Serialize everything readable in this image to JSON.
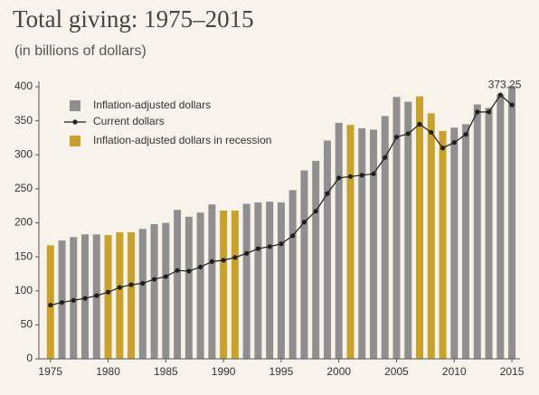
{
  "chart_data": {
    "type": "bar",
    "title": "Total giving: 1975–2015",
    "subtitle": "(in billions of dollars)",
    "x": [
      1975,
      1976,
      1977,
      1978,
      1979,
      1980,
      1981,
      1982,
      1983,
      1984,
      1985,
      1986,
      1987,
      1988,
      1989,
      1990,
      1991,
      1992,
      1993,
      1994,
      1995,
      1996,
      1997,
      1998,
      1999,
      2000,
      2001,
      2002,
      2003,
      2004,
      2005,
      2006,
      2007,
      2008,
      2009,
      2010,
      2011,
      2012,
      2013,
      2014,
      2015
    ],
    "series": [
      {
        "name": "Inflation-adjusted dollars",
        "type": "bar",
        "color": "#8f8f8f",
        "values": [
          null,
          174,
          179,
          183,
          183,
          null,
          null,
          null,
          191,
          198,
          200,
          219,
          209,
          215,
          227,
          null,
          null,
          228,
          230,
          231,
          230,
          248,
          277,
          291,
          321,
          347,
          null,
          339,
          337,
          357,
          385,
          378,
          null,
          null,
          null,
          340,
          345,
          374,
          369,
          389,
          401
        ]
      },
      {
        "name": "Current dollars",
        "type": "line",
        "color": "#1e1e1e",
        "values": [
          79,
          83,
          86,
          89,
          93,
          98,
          105,
          109,
          111,
          117,
          121,
          130,
          129,
          135,
          143,
          145,
          149,
          155,
          162,
          165,
          169,
          181,
          201,
          217,
          243,
          266,
          268,
          270,
          272,
          296,
          326,
          331,
          345,
          333,
          310,
          318,
          330,
          363,
          363,
          388,
          373.25
        ]
      },
      {
        "name": "Inflation-adjusted dollars in recession",
        "type": "bar",
        "color": "#c8a22c",
        "values": [
          167,
          null,
          null,
          null,
          null,
          182,
          186,
          186,
          null,
          null,
          null,
          null,
          null,
          null,
          null,
          218,
          218,
          null,
          null,
          null,
          null,
          null,
          null,
          null,
          null,
          null,
          344,
          null,
          null,
          null,
          null,
          null,
          386,
          361,
          335,
          null,
          null,
          null,
          null,
          null,
          null
        ]
      }
    ],
    "xlim": [
      1974,
      2015.7
    ],
    "xticks": [
      1975,
      1980,
      1985,
      1990,
      1995,
      2000,
      2005,
      2010,
      2015
    ],
    "ylim": [
      0,
      400
    ],
    "yticks": [
      0,
      50,
      100,
      150,
      200,
      250,
      300,
      350,
      400
    ],
    "grid": false
  }
}
